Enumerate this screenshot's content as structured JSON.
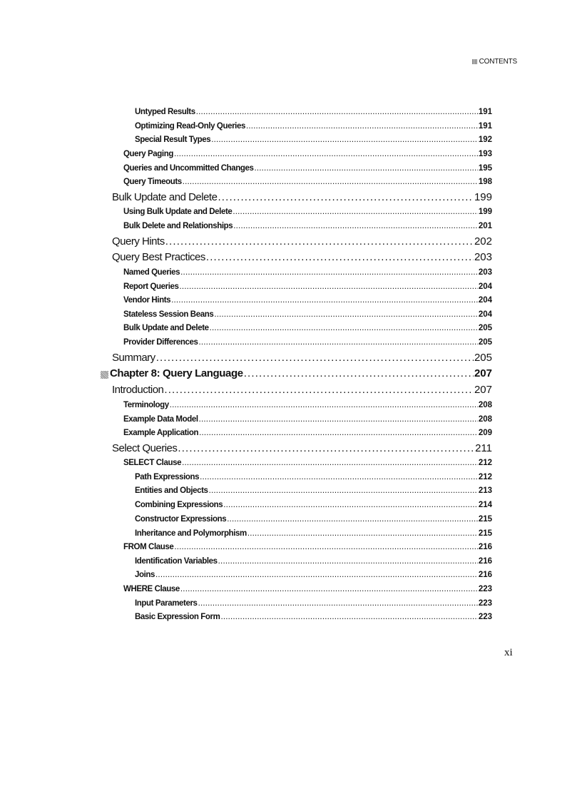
{
  "header": {
    "label": "CONTENTS"
  },
  "entries": [
    {
      "level": 3,
      "title": "Untyped Results",
      "page": "191"
    },
    {
      "level": 3,
      "title": "Optimizing Read-Only Queries",
      "page": "191"
    },
    {
      "level": 3,
      "title": "Special Result Types",
      "page": "192"
    },
    {
      "level": 2,
      "title": "Query Paging",
      "page": "193"
    },
    {
      "level": 2,
      "title": "Queries and Uncommitted Changes",
      "page": "195"
    },
    {
      "level": 2,
      "title": "Query Timeouts",
      "page": "198"
    },
    {
      "level": 1,
      "title": "Bulk Update and Delete",
      "page": "199"
    },
    {
      "level": 2,
      "title": "Using Bulk Update and Delete",
      "page": "199"
    },
    {
      "level": 2,
      "title": "Bulk Delete and Relationships",
      "page": "201"
    },
    {
      "level": 1,
      "title": "Query Hints",
      "page": "202"
    },
    {
      "level": 1,
      "title": "Query Best Practices",
      "page": "203"
    },
    {
      "level": 2,
      "title": "Named Queries",
      "page": "203"
    },
    {
      "level": 2,
      "title": "Report Queries",
      "page": "204"
    },
    {
      "level": 2,
      "title": "Vendor Hints",
      "page": "204"
    },
    {
      "level": 2,
      "title": "Stateless Session Beans",
      "page": "204"
    },
    {
      "level": 2,
      "title": "Bulk Update and Delete",
      "page": "205"
    },
    {
      "level": 2,
      "title": "Provider Differences",
      "page": "205"
    },
    {
      "level": 1,
      "title": "Summary",
      "page": "205"
    },
    {
      "level": 0,
      "title": "Chapter 8: Query Language",
      "page": "207"
    },
    {
      "level": 1,
      "title": "Introduction",
      "page": "207"
    },
    {
      "level": 2,
      "title": "Terminology",
      "page": "208"
    },
    {
      "level": 2,
      "title": "Example Data Model",
      "page": "208"
    },
    {
      "level": 2,
      "title": "Example Application",
      "page": "209"
    },
    {
      "level": 1,
      "title": "Select Queries",
      "page": "211"
    },
    {
      "level": 2,
      "title": "SELECT Clause",
      "page": "212"
    },
    {
      "level": 3,
      "title": "Path Expressions",
      "page": "212"
    },
    {
      "level": 3,
      "title": "Entities and Objects",
      "page": "213"
    },
    {
      "level": 3,
      "title": "Combining Expressions",
      "page": "214"
    },
    {
      "level": 3,
      "title": "Constructor Expressions",
      "page": "215"
    },
    {
      "level": 3,
      "title": "Inheritance and Polymorphism",
      "page": "215"
    },
    {
      "level": 2,
      "title": "FROM Clause",
      "page": "216"
    },
    {
      "level": 3,
      "title": "Identification Variables",
      "page": "216"
    },
    {
      "level": 3,
      "title": "Joins",
      "page": "216"
    },
    {
      "level": 2,
      "title": "WHERE Clause",
      "page": "223"
    },
    {
      "level": 3,
      "title": "Input Parameters",
      "page": "223"
    },
    {
      "level": 3,
      "title": "Basic Expression Form",
      "page": "223"
    }
  ],
  "footer": {
    "page_number": "xi"
  }
}
